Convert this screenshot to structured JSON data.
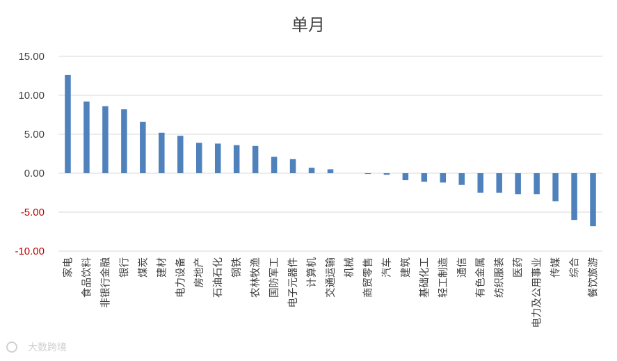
{
  "chart_data": {
    "type": "bar",
    "title": "单月",
    "xlabel": "",
    "ylabel": "",
    "ylim": [
      -10,
      15
    ],
    "yticks": [
      "15.00",
      "10.00",
      "5.00",
      "0.00",
      "-5.00",
      "-10.00"
    ],
    "ytick_values": [
      15,
      10,
      5,
      0,
      -5,
      -10
    ],
    "grid": true,
    "legend": "none",
    "categories": [
      "家电",
      "食品饮料",
      "非银行金融",
      "银行",
      "煤炭",
      "建材",
      "电力设备",
      "房地产",
      "石油石化",
      "钢铁",
      "农林牧渔",
      "国防军工",
      "电子元器件",
      "计算机",
      "交通运输",
      "机械",
      "商贸零售",
      "汽车",
      "建筑",
      "基础化工",
      "轻工制造",
      "通信",
      "有色金属",
      "纺织服装",
      "医药",
      "电力及公用事业",
      "传媒",
      "综合",
      "餐饮旅游"
    ],
    "series": [
      {
        "values": [
          12.6,
          9.2,
          8.6,
          8.2,
          6.6,
          5.2,
          4.8,
          3.9,
          3.8,
          3.6,
          3.5,
          2.1,
          1.8,
          0.7,
          0.5,
          0.0,
          -0.1,
          -0.2,
          -0.9,
          -1.1,
          -1.2,
          -1.5,
          -2.5,
          -2.5,
          -2.7,
          -2.7,
          -3.6,
          -6.0,
          -6.8
        ]
      }
    ],
    "colors": {
      "bar": "#4f81bd",
      "positive_tick": "#404040",
      "negative_tick": "#c00000",
      "grid": "#d9d9d9"
    }
  },
  "watermark": {
    "text": "大数跨境"
  }
}
